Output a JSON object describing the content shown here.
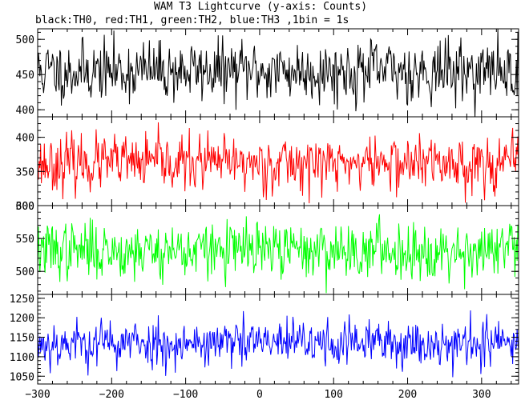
{
  "title": "WAM T3 Lightcurve (y-axis: Counts)",
  "subtitle": "black:TH0, red:TH1, green:TH2, blue:TH3 ,1bin = 1s",
  "chart_data": [
    {
      "type": "line",
      "series": [
        {
          "name": "TH0",
          "color": "#000000",
          "mean": 455,
          "amplitude": 28,
          "seed": 11
        }
      ],
      "xlim": [
        -300,
        350
      ],
      "ylim": [
        390,
        515
      ],
      "yticks": [
        400,
        450,
        500
      ],
      "ytick_labels": [
        "400",
        "450",
        "500"
      ]
    },
    {
      "type": "line",
      "series": [
        {
          "name": "TH1",
          "color": "#ff0000",
          "mean": 362,
          "amplitude": 26,
          "seed": 23
        }
      ],
      "xlim": [
        -300,
        350
      ],
      "ylim": [
        300,
        430
      ],
      "yticks": [
        300,
        350,
        400
      ],
      "ytick_labels": [
        "300",
        "350",
        "400"
      ]
    },
    {
      "type": "line",
      "series": [
        {
          "name": "TH2",
          "color": "#00ff00",
          "mean": 532,
          "amplitude": 28,
          "seed": 37
        }
      ],
      "xlim": [
        -300,
        350
      ],
      "ylim": [
        465,
        600
      ],
      "yticks": [
        500,
        550,
        600
      ],
      "ytick_labels": [
        "500",
        "550",
        "600"
      ]
    },
    {
      "type": "line",
      "series": [
        {
          "name": "TH3",
          "color": "#0000ff",
          "mean": 1135,
          "amplitude": 40,
          "seed": 53
        }
      ],
      "xlim": [
        -300,
        350
      ],
      "ylim": [
        1030,
        1260
      ],
      "yticks": [
        1050,
        1100,
        1150,
        1200,
        1250
      ],
      "ytick_labels": [
        "1050",
        "1100",
        "1150",
        "1200",
        "1250"
      ]
    }
  ],
  "xticks": [
    -300,
    -200,
    -100,
    0,
    100,
    200,
    300
  ],
  "xtick_labels": [
    "−300",
    "−200",
    "−100",
    "0",
    "100",
    "200",
    "300"
  ]
}
